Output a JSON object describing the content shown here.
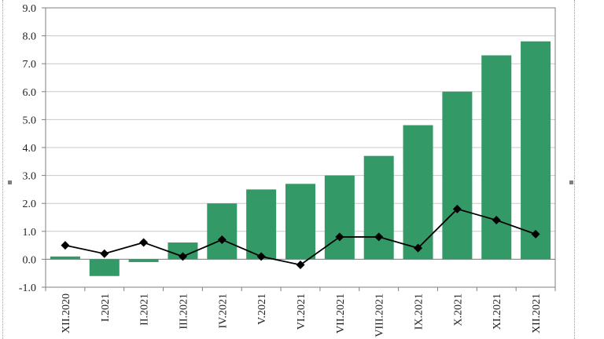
{
  "chart_data": {
    "type": "bar",
    "categories": [
      "XII.2020",
      "I.2021",
      "II.2021",
      "III.2021",
      "IV.2021",
      "V.2021",
      "VI.2021",
      "VII.2021",
      "VIII.2021",
      "IX.2021",
      "X.2021",
      "XI.2021",
      "XII.2021"
    ],
    "series": [
      {
        "kind": "bar",
        "color": "#339966",
        "values": [
          0.1,
          -0.6,
          -0.1,
          0.6,
          2.0,
          2.5,
          2.7,
          3.0,
          3.7,
          4.8,
          6.0,
          7.3,
          7.8
        ]
      },
      {
        "kind": "line",
        "color": "#000000",
        "marker": "diamond",
        "values": [
          0.5,
          0.2,
          0.6,
          0.1,
          0.7,
          0.1,
          -0.2,
          0.8,
          0.8,
          0.4,
          1.8,
          1.4,
          0.9
        ]
      }
    ],
    "y_ticks": [
      "-1.0",
      "0.0",
      "1.0",
      "2.0",
      "3.0",
      "4.0",
      "5.0",
      "6.0",
      "7.0",
      "8.0",
      "9.0"
    ],
    "ylim": [
      -1.0,
      9.0
    ],
    "grid": true,
    "legend": "none",
    "title": "",
    "xlabel": "",
    "ylabel": ""
  }
}
